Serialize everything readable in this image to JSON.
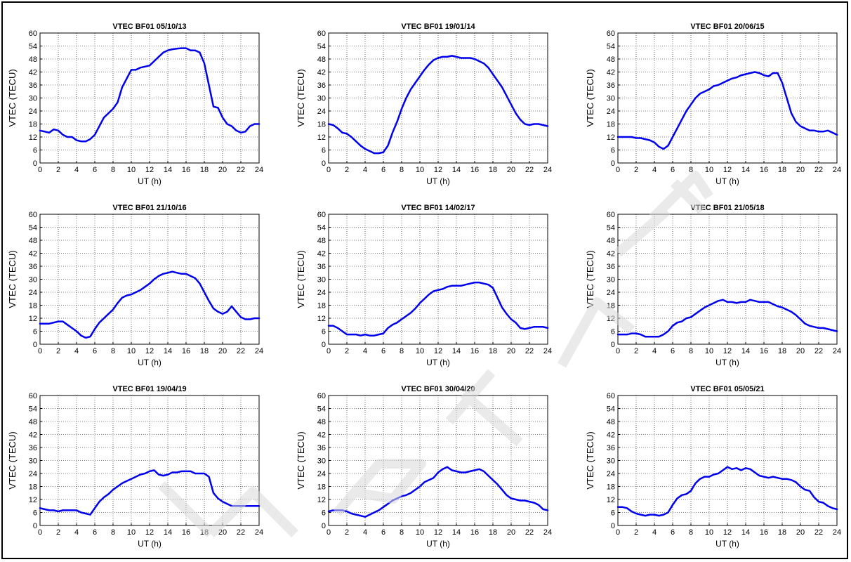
{
  "chart_data": [
    {
      "type": "line",
      "title": "VTEC BF01 05/10/13",
      "xlabel": "UT (h)",
      "ylabel": "VTEC (TECU)",
      "xlim": [
        0,
        24
      ],
      "ylim": [
        0,
        60
      ],
      "xticks": [
        0,
        2,
        4,
        6,
        8,
        10,
        12,
        14,
        16,
        18,
        20,
        22,
        24
      ],
      "yticks": [
        0,
        6,
        12,
        18,
        24,
        30,
        36,
        42,
        48,
        54,
        60
      ],
      "grid": true,
      "line_color": "#0000ee",
      "x": [
        0,
        0.5,
        1,
        1.5,
        2,
        2.5,
        3,
        3.5,
        4,
        4.5,
        5,
        5.5,
        6,
        6.5,
        7,
        7.5,
        8,
        8.5,
        9,
        9.5,
        10,
        10.5,
        11,
        11.5,
        12,
        12.5,
        13,
        13.5,
        14,
        14.5,
        15,
        15.5,
        16,
        16.5,
        17,
        17.5,
        18,
        18.5,
        19,
        19.5,
        20,
        20.5,
        21,
        21.5,
        22,
        22.5,
        23,
        23.5,
        24
      ],
      "y": [
        15,
        14.5,
        14,
        15.5,
        15,
        13,
        12,
        12,
        10.5,
        10,
        10,
        11,
        13,
        17,
        21,
        23,
        25,
        28,
        35,
        39,
        43,
        43,
        44,
        44.5,
        45,
        47,
        49,
        51,
        52,
        52.5,
        52.8,
        53,
        53,
        52,
        52,
        51,
        46,
        36,
        26,
        25.5,
        21,
        18,
        17,
        15,
        14,
        14.5,
        17,
        18,
        18
      ]
    },
    {
      "type": "line",
      "title": "VTEC BF01 19/01/14",
      "xlabel": "UT (h)",
      "ylabel": "VTEC (TECU)",
      "xlim": [
        0,
        24
      ],
      "ylim": [
        0,
        60
      ],
      "xticks": [
        0,
        2,
        4,
        6,
        8,
        10,
        12,
        14,
        16,
        18,
        20,
        22,
        24
      ],
      "yticks": [
        0,
        6,
        12,
        18,
        24,
        30,
        36,
        42,
        48,
        54,
        60
      ],
      "grid": true,
      "line_color": "#0000ee",
      "x": [
        0,
        0.5,
        1,
        1.5,
        2,
        2.5,
        3,
        3.5,
        4,
        4.5,
        5,
        5.5,
        6,
        6.5,
        7,
        7.5,
        8,
        8.5,
        9,
        9.5,
        10,
        10.5,
        11,
        11.5,
        12,
        12.5,
        13,
        13.5,
        14,
        14.5,
        15,
        15.5,
        16,
        16.5,
        17,
        17.5,
        18,
        18.5,
        19,
        19.5,
        20,
        20.5,
        21,
        21.5,
        22,
        22.5,
        23,
        23.5,
        24
      ],
      "y": [
        18,
        17.5,
        16,
        14,
        13.5,
        12,
        10,
        8,
        6.5,
        5.5,
        4.5,
        4.5,
        5,
        8,
        14,
        19,
        25,
        30,
        34,
        37,
        40,
        43,
        45.5,
        47.5,
        48.5,
        49,
        49,
        49.5,
        49,
        48.5,
        48.5,
        48.5,
        48,
        47,
        46,
        44,
        41,
        38,
        35,
        31,
        27,
        23,
        20,
        18,
        17.5,
        18,
        18,
        17.5,
        17
      ]
    },
    {
      "type": "line",
      "title": "VTEC BF01 20/06/15",
      "xlabel": "UT (h)",
      "ylabel": "VTEC (TECU)",
      "xlim": [
        0,
        24
      ],
      "ylim": [
        0,
        60
      ],
      "xticks": [
        0,
        2,
        4,
        6,
        8,
        10,
        12,
        14,
        16,
        18,
        20,
        22,
        24
      ],
      "yticks": [
        0,
        6,
        12,
        18,
        24,
        30,
        36,
        42,
        48,
        54,
        60
      ],
      "grid": true,
      "line_color": "#0000ee",
      "x": [
        0,
        0.5,
        1,
        1.5,
        2,
        2.5,
        3,
        3.5,
        4,
        4.5,
        5,
        5.5,
        6,
        6.5,
        7,
        7.5,
        8,
        8.5,
        9,
        9.5,
        10,
        10.5,
        11,
        11.5,
        12,
        12.5,
        13,
        13.5,
        14,
        14.5,
        15,
        15.5,
        16,
        16.5,
        17,
        17.5,
        18,
        18.5,
        19,
        19.5,
        20,
        20.5,
        21,
        21.5,
        22,
        22.5,
        23,
        23.5,
        24
      ],
      "y": [
        12,
        12,
        12,
        12,
        11.5,
        11.5,
        11,
        10.5,
        9.5,
        7.5,
        6.5,
        8,
        12,
        16,
        20,
        24,
        27,
        30,
        32,
        33,
        34,
        35.5,
        36,
        37,
        38,
        39,
        39.5,
        40.5,
        41,
        41.5,
        42,
        41.5,
        40.5,
        40,
        41.5,
        41.5,
        37,
        30,
        23,
        19,
        17,
        16,
        15,
        15,
        14.5,
        14.5,
        15,
        14,
        13
      ]
    },
    {
      "type": "line",
      "title": "VTEC BF01 21/10/16",
      "xlabel": "UT (h)",
      "ylabel": "VTEC (TECU)",
      "xlim": [
        0,
        24
      ],
      "ylim": [
        0,
        60
      ],
      "xticks": [
        0,
        2,
        4,
        6,
        8,
        10,
        12,
        14,
        16,
        18,
        20,
        22,
        24
      ],
      "yticks": [
        0,
        6,
        12,
        18,
        24,
        30,
        36,
        42,
        48,
        54,
        60
      ],
      "grid": true,
      "line_color": "#0000ee",
      "x": [
        0,
        0.5,
        1,
        1.5,
        2,
        2.5,
        3,
        3.5,
        4,
        4.5,
        5,
        5.5,
        6,
        6.5,
        7,
        7.5,
        8,
        8.5,
        9,
        9.5,
        10,
        10.5,
        11,
        11.5,
        12,
        12.5,
        13,
        13.5,
        14,
        14.5,
        15,
        15.5,
        16,
        16.5,
        17,
        17.5,
        18,
        18.5,
        19,
        19.5,
        20,
        20.5,
        21,
        21.5,
        22,
        22.5,
        23,
        23.5,
        24
      ],
      "y": [
        9.5,
        9.5,
        9.5,
        10,
        10.5,
        10.5,
        9,
        7.5,
        6,
        4,
        3,
        3.5,
        7,
        10,
        12,
        14,
        16,
        19,
        21.5,
        22.5,
        23,
        24,
        25,
        26.5,
        28,
        30,
        31.5,
        32.5,
        33,
        33.5,
        33,
        32.5,
        32.5,
        31.5,
        30.5,
        28,
        24,
        20,
        16.5,
        15,
        14,
        15,
        17.5,
        15,
        12.5,
        11.5,
        11.5,
        12,
        12
      ]
    },
    {
      "type": "line",
      "title": "VTEC BF01 14/02/17",
      "xlabel": "UT (h)",
      "ylabel": "VTEC (TECU)",
      "xlim": [
        0,
        24
      ],
      "ylim": [
        0,
        60
      ],
      "xticks": [
        0,
        2,
        4,
        6,
        8,
        10,
        12,
        14,
        16,
        18,
        20,
        22,
        24
      ],
      "yticks": [
        0,
        6,
        12,
        18,
        24,
        30,
        36,
        42,
        48,
        54,
        60
      ],
      "grid": true,
      "line_color": "#0000ee",
      "x": [
        0,
        0.5,
        1,
        1.5,
        2,
        2.5,
        3,
        3.5,
        4,
        4.5,
        5,
        5.5,
        6,
        6.5,
        7,
        7.5,
        8,
        8.5,
        9,
        9.5,
        10,
        10.5,
        11,
        11.5,
        12,
        12.5,
        13,
        13.5,
        14,
        14.5,
        15,
        15.5,
        16,
        16.5,
        17,
        17.5,
        18,
        18.5,
        19,
        19.5,
        20,
        20.5,
        21,
        21.5,
        22,
        22.5,
        23,
        23.5,
        24
      ],
      "y": [
        8.5,
        8.5,
        7.5,
        6,
        4.5,
        4.5,
        4.5,
        4,
        4.5,
        4,
        4,
        4.5,
        5,
        7.5,
        9,
        10,
        11.5,
        13,
        14.5,
        16.5,
        19,
        21,
        23,
        24.5,
        25,
        25.5,
        26.5,
        27,
        27,
        27,
        27.5,
        28,
        28.5,
        28.5,
        28,
        27.5,
        26,
        21.5,
        17,
        14,
        11.5,
        10,
        7.5,
        7,
        7.5,
        8,
        8,
        8,
        7.5
      ]
    },
    {
      "type": "line",
      "title": "VTEC BF01 21/05/18",
      "xlabel": "UT (h)",
      "ylabel": "VTEC (TECU)",
      "xlim": [
        0,
        24
      ],
      "ylim": [
        0,
        60
      ],
      "xticks": [
        0,
        2,
        4,
        6,
        8,
        10,
        12,
        14,
        16,
        18,
        20,
        22,
        24
      ],
      "yticks": [
        0,
        6,
        12,
        18,
        24,
        30,
        36,
        42,
        48,
        54,
        60
      ],
      "grid": true,
      "line_color": "#0000ee",
      "x": [
        0,
        0.5,
        1,
        1.5,
        2,
        2.5,
        3,
        3.5,
        4,
        4.5,
        5,
        5.5,
        6,
        6.5,
        7,
        7.5,
        8,
        8.5,
        9,
        9.5,
        10,
        10.5,
        11,
        11.5,
        12,
        12.5,
        13,
        13.5,
        14,
        14.5,
        15,
        15.5,
        16,
        16.5,
        17,
        17.5,
        18,
        18.5,
        19,
        19.5,
        20,
        20.5,
        21,
        21.5,
        22,
        22.5,
        23,
        23.5,
        24
      ],
      "y": [
        4.5,
        4.5,
        4.5,
        5,
        5,
        4.5,
        3.5,
        3.5,
        3.5,
        3.5,
        4.5,
        6,
        8.5,
        10,
        10.5,
        12,
        12.5,
        14,
        15.5,
        17,
        18,
        19,
        20,
        20.5,
        19.5,
        19.5,
        19,
        19.5,
        19.5,
        20.5,
        20,
        19.5,
        19.5,
        19.5,
        18.5,
        17.5,
        17,
        16,
        15,
        13.5,
        11.5,
        9.5,
        8.5,
        8,
        7.5,
        7.5,
        7,
        6.5,
        6
      ]
    },
    {
      "type": "line",
      "title": "VTEC BF01 19/04/19",
      "xlabel": "UT (h)",
      "ylabel": "VTEC (TECU)",
      "xlim": [
        0,
        24
      ],
      "ylim": [
        0,
        60
      ],
      "xticks": [
        0,
        2,
        4,
        6,
        8,
        10,
        12,
        14,
        16,
        18,
        20,
        22,
        24
      ],
      "yticks": [
        0,
        6,
        12,
        18,
        24,
        30,
        36,
        42,
        48,
        54,
        60
      ],
      "grid": true,
      "line_color": "#0000ee",
      "x": [
        0,
        0.5,
        1,
        1.5,
        2,
        2.5,
        3,
        3.5,
        4,
        4.5,
        5,
        5.5,
        6,
        6.5,
        7,
        7.5,
        8,
        8.5,
        9,
        9.5,
        10,
        10.5,
        11,
        11.5,
        12,
        12.5,
        13,
        13.5,
        14,
        14.5,
        15,
        15.5,
        16,
        16.5,
        17,
        17.5,
        18,
        18.5,
        19,
        19.5,
        20,
        20.5,
        21,
        21.5,
        22,
        22.5,
        23,
        23.5,
        24
      ],
      "y": [
        8,
        7.5,
        7,
        7,
        6.5,
        7,
        7,
        7,
        7,
        6,
        5.5,
        5,
        8,
        11,
        13,
        14.5,
        16.5,
        18,
        19.5,
        20.5,
        21.5,
        22.5,
        23.5,
        24,
        25,
        25.5,
        23.5,
        23,
        23.5,
        24.5,
        24.5,
        25,
        25,
        25,
        24,
        24,
        24,
        22.5,
        15,
        12.5,
        11,
        10,
        9,
        9,
        9,
        9,
        9,
        9,
        9
      ]
    },
    {
      "type": "line",
      "title": "VTEC BF01 30/04/20",
      "xlabel": "UT (h)",
      "ylabel": "VTEC (TECU)",
      "xlim": [
        0,
        24
      ],
      "ylim": [
        0,
        60
      ],
      "xticks": [
        0,
        2,
        4,
        6,
        8,
        10,
        12,
        14,
        16,
        18,
        20,
        22,
        24
      ],
      "yticks": [
        0,
        6,
        12,
        18,
        24,
        30,
        36,
        42,
        48,
        54,
        60
      ],
      "grid": true,
      "line_color": "#0000ee",
      "x": [
        0,
        0.5,
        1,
        1.5,
        2,
        2.5,
        3,
        3.5,
        4,
        4.5,
        5,
        5.5,
        6,
        6.5,
        7,
        7.5,
        8,
        8.5,
        9,
        9.5,
        10,
        10.5,
        11,
        11.5,
        12,
        12.5,
        13,
        13.5,
        14,
        14.5,
        15,
        15.5,
        16,
        16.5,
        17,
        17.5,
        18,
        18.5,
        19,
        19.5,
        20,
        20.5,
        21,
        21.5,
        22,
        22.5,
        23,
        23.5,
        24
      ],
      "y": [
        6.5,
        7,
        7,
        7,
        6.5,
        5.5,
        5,
        4.5,
        4,
        5,
        6,
        7,
        8.5,
        10,
        11.5,
        12.5,
        13.5,
        14,
        15,
        16.5,
        18,
        20,
        21,
        22,
        24.5,
        26,
        27,
        25.5,
        25,
        24.5,
        24.5,
        25,
        25.5,
        26,
        25,
        23,
        21,
        19,
        16.5,
        14,
        12.5,
        12,
        11.5,
        11.5,
        11,
        10.5,
        9.5,
        7.5,
        7
      ]
    },
    {
      "type": "line",
      "title": "VTEC BF01 05/05/21",
      "xlabel": "UT (h)",
      "ylabel": "VTEC (TECU)",
      "xlim": [
        0,
        24
      ],
      "ylim": [
        0,
        60
      ],
      "xticks": [
        0,
        2,
        4,
        6,
        8,
        10,
        12,
        14,
        16,
        18,
        20,
        22,
        24
      ],
      "yticks": [
        0,
        6,
        12,
        18,
        24,
        30,
        36,
        42,
        48,
        54,
        60
      ],
      "grid": true,
      "line_color": "#0000ee",
      "x": [
        0,
        0.5,
        1,
        1.5,
        2,
        2.5,
        3,
        3.5,
        4,
        4.5,
        5,
        5.5,
        6,
        6.5,
        7,
        7.5,
        8,
        8.5,
        9,
        9.5,
        10,
        10.5,
        11,
        11.5,
        12,
        12.5,
        13,
        13.5,
        14,
        14.5,
        15,
        15.5,
        16,
        16.5,
        17,
        17.5,
        18,
        18.5,
        19,
        19.5,
        20,
        20.5,
        21,
        21.5,
        22,
        22.5,
        23,
        23.5,
        24
      ],
      "y": [
        8.5,
        8.5,
        8,
        6.5,
        5.5,
        5,
        4.5,
        5,
        5,
        4.5,
        5,
        6,
        9.5,
        12.5,
        14,
        14.5,
        16,
        19.5,
        21.5,
        22.5,
        22.5,
        23.5,
        24,
        25.5,
        27,
        26,
        26.5,
        25.5,
        26.5,
        26,
        24.5,
        23,
        22.5,
        22,
        22.5,
        22,
        21.5,
        21.5,
        21,
        20,
        18,
        16.5,
        16,
        13,
        11,
        10.5,
        9,
        8,
        7.5
      ]
    }
  ]
}
